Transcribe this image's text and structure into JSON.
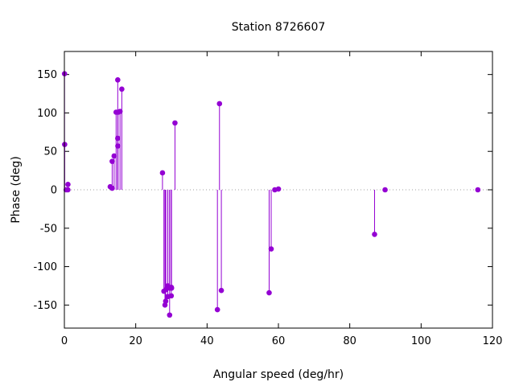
{
  "chart_data": {
    "type": "scatter",
    "style": "impulses-with-points",
    "title": "Station 8726607",
    "xlabel": "Angular speed (deg/hr)",
    "ylabel": "Phase (deg)",
    "xlim": [
      0,
      120
    ],
    "ylim": [
      -180,
      180
    ],
    "xticks": [
      0,
      20,
      40,
      60,
      80,
      100,
      120
    ],
    "yticks": [
      -150,
      -100,
      -50,
      0,
      50,
      100,
      150
    ],
    "xtick_labels": [
      "0",
      "20",
      "40",
      "60",
      "80",
      "100",
      "120"
    ],
    "ytick_labels": [
      "-150",
      "-100",
      "-50",
      "0",
      "50",
      "100",
      "150"
    ],
    "zero_line": true,
    "grid": false,
    "color": "#9400d3",
    "series": [
      {
        "points": [
          [
            0.04,
            151
          ],
          [
            0.08,
            59
          ],
          [
            0.5,
            0
          ],
          [
            0.98,
            0
          ],
          [
            1.0,
            7
          ],
          [
            12.85,
            4
          ],
          [
            13.4,
            37
          ],
          [
            13.4,
            2
          ],
          [
            13.94,
            44
          ],
          [
            14.5,
            101
          ],
          [
            14.96,
            143
          ],
          [
            14.96,
            67
          ],
          [
            15.0,
            57
          ],
          [
            15.04,
            101
          ],
          [
            15.6,
            102
          ],
          [
            16.1,
            131
          ],
          [
            27.5,
            22
          ],
          [
            27.9,
            -132
          ],
          [
            28.2,
            -150
          ],
          [
            28.4,
            -145
          ],
          [
            28.44,
            -130
          ],
          [
            28.98,
            -139
          ],
          [
            29.0,
            -125
          ],
          [
            29.5,
            -163
          ],
          [
            29.5,
            -128
          ],
          [
            29.96,
            -138
          ],
          [
            30.0,
            -127
          ],
          [
            30.04,
            -128
          ],
          [
            31.0,
            87
          ],
          [
            42.9,
            -156
          ],
          [
            43.48,
            112
          ],
          [
            44.0,
            -131
          ],
          [
            57.4,
            -134
          ],
          [
            57.97,
            -77
          ],
          [
            58.98,
            0
          ],
          [
            60.0,
            1
          ],
          [
            86.95,
            -58
          ],
          [
            89.9,
            0
          ],
          [
            115.9,
            0
          ]
        ]
      }
    ]
  }
}
